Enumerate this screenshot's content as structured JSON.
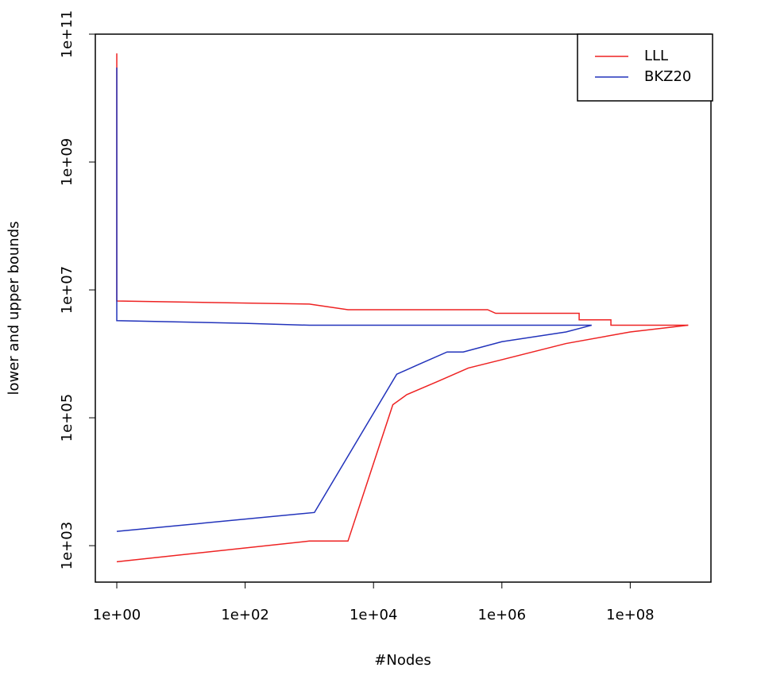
{
  "chart_data": {
    "type": "line",
    "x_label": "#Nodes",
    "y_label": "lower and upper bounds",
    "x_log": true,
    "y_log": true,
    "grid": false,
    "legend_position": "top-right",
    "xlim": [
      0.463,
      1810000000
    ],
    "ylim": [
      269,
      100000000000
    ],
    "xticks": [
      {
        "value": 1,
        "label": "1e+00"
      },
      {
        "value": 100,
        "label": "1e+02"
      },
      {
        "value": 10000,
        "label": "1e+04"
      },
      {
        "value": 1000000,
        "label": "1e+06"
      },
      {
        "value": 100000000,
        "label": "1e+08"
      }
    ],
    "yticks": [
      {
        "value": 1000,
        "label": "1e+03"
      },
      {
        "value": 100000,
        "label": "1e+05"
      },
      {
        "value": 10000000,
        "label": "1e+07"
      },
      {
        "value": 1000000000,
        "label": "1e+09"
      },
      {
        "value": 100000000000,
        "label": "1e+11"
      }
    ],
    "series": [
      {
        "name": "LLL",
        "color": "#ee2222",
        "lines": [
          {
            "x": [
              1,
              1,
              1000,
              4000,
              600000,
              800000,
              16000000,
              16000000,
              50000000,
              50000000,
              800000000
            ],
            "values": [
              50000000000,
              6700000,
              6000000,
              4900000,
              4900000,
              4300000,
              4300000,
              3400000,
              3400000,
              2800000,
              2800000
            ]
          },
          {
            "x": [
              1,
              1000,
              4000,
              20000,
              33000,
              100000,
              300000,
              1000000,
              10000000,
              100000000,
              800000000
            ],
            "values": [
              560,
              1180,
              1180,
              160000,
              230000,
              370000,
              600000,
              810000,
              1450000,
              2200000,
              2800000
            ]
          }
        ]
      },
      {
        "name": "BKZ20",
        "color": "#2233bb",
        "lines": [
          {
            "x": [
              1,
              1,
              100,
              1000,
              25000000
            ],
            "values": [
              30000000000,
              3300000,
              3000000,
              2800000,
              2800000
            ]
          },
          {
            "x": [
              1,
              1200,
              23000,
              50000,
              140000,
              250000,
              1000000,
              10000000,
              25000000
            ],
            "values": [
              1670,
              3300,
              480000,
              680000,
              1070000,
              1070000,
              1550000,
              2200000,
              2800000
            ]
          }
        ]
      }
    ]
  }
}
